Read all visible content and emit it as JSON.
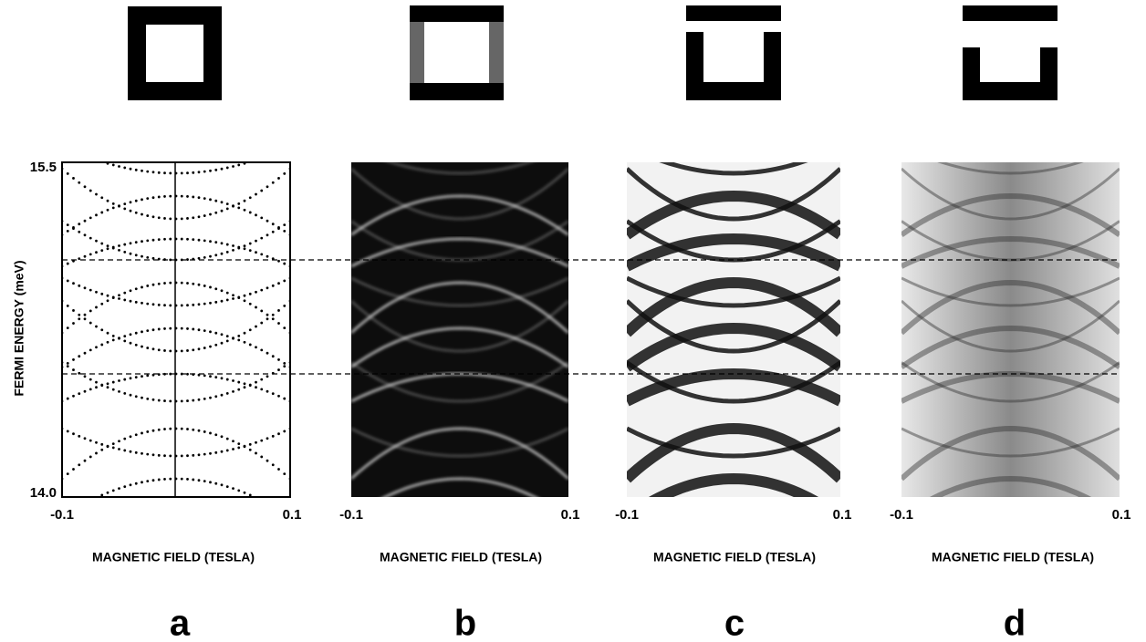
{
  "figure": {
    "y_axis": {
      "label": "FERMI ENERGY (meV)",
      "ticks": [
        "15.5",
        "14.0"
      ]
    },
    "panels": [
      {
        "label": "a",
        "x_ticks": [
          "-0.1",
          "0.1"
        ],
        "x_label": "MAGNETIC FIELD (TESLA)"
      },
      {
        "label": "b",
        "x_ticks": [
          "-0.1",
          "0.1"
        ],
        "x_label": "MAGNETIC FIELD (TESLA)"
      },
      {
        "label": "c",
        "x_ticks": [
          "-0.1",
          "0.1"
        ],
        "x_label": "MAGNETIC FIELD (TESLA)"
      },
      {
        "label": "d",
        "x_ticks": [
          "-0.1",
          "0.1"
        ],
        "x_label": "MAGNETIC FIELD (TESLA)"
      }
    ]
  }
}
